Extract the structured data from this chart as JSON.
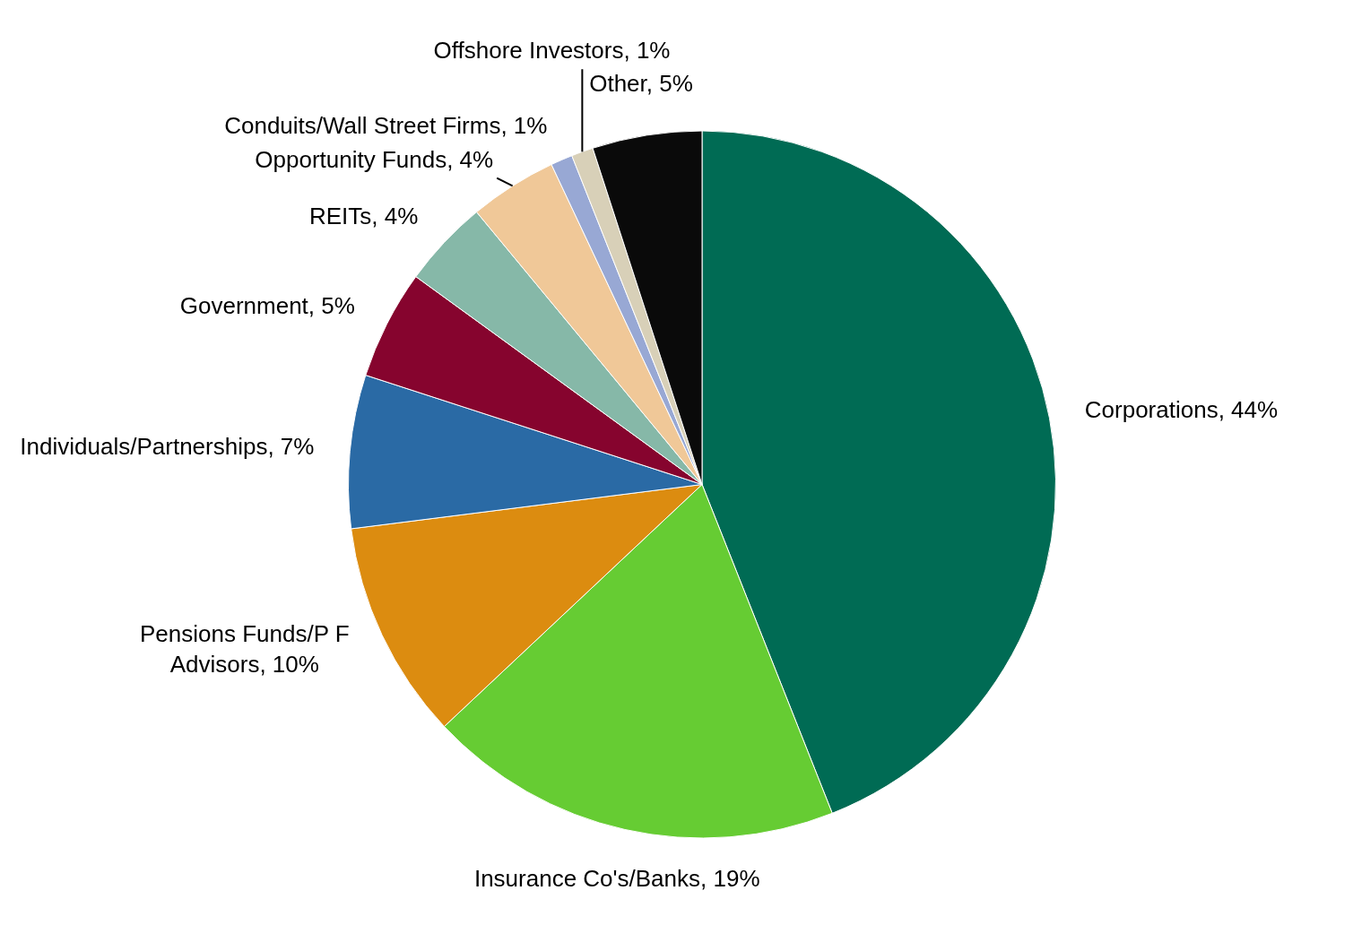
{
  "chart_data": {
    "type": "pie",
    "categories": [
      "Corporations",
      "Insurance Co's/Banks",
      "Pensions Funds/P F Advisors",
      "Individuals/Partnerships",
      "Government",
      "REITs",
      "Opportunity Funds",
      "Conduits/Wall Street Firms",
      "Offshore Investors",
      "Other"
    ],
    "values": [
      44,
      19,
      10,
      7,
      5,
      4,
      4,
      1,
      1,
      5
    ],
    "colors": [
      "#006b54",
      "#66cc33",
      "#dc8c10",
      "#2a6aa5",
      "#86042e",
      "#86b8a8",
      "#f0c898",
      "#98a8d4",
      "#d8d0b8",
      "#0a0a0a"
    ],
    "value_labels": [
      "44%",
      "19%",
      "10%",
      "7%",
      "5%",
      "4%",
      "4%",
      "1%",
      "1%",
      "5%"
    ]
  }
}
